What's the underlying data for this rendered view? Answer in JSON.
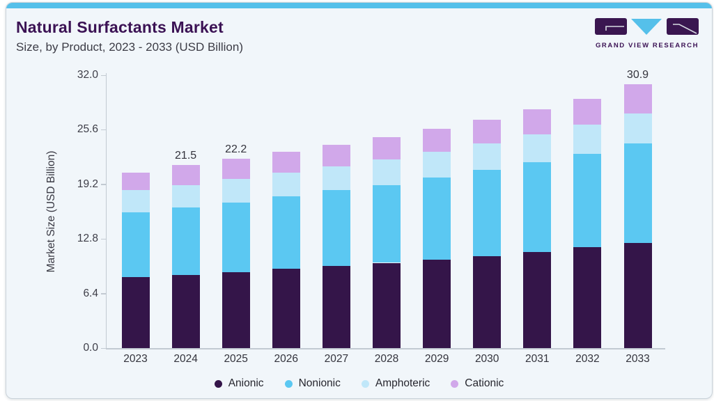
{
  "header": {
    "title": "Natural Surfactants Market",
    "subtitle": "Size, by Product, 2023 - 2033 (USD Billion)",
    "brand": "GRAND VIEW RESEARCH"
  },
  "colors": {
    "accent_bar": "#55c0ea",
    "card_background": "#f1f6fa",
    "title_purple": "#3b1254",
    "axis": "#c2cad2",
    "tick_text": "#3d3d47",
    "label_text": "#33333c"
  },
  "chart_data": {
    "type": "bar",
    "stacked": true,
    "title": "Natural Surfactants Market Size, by Product, 2023 - 2033 (USD Billion)",
    "xlabel": "",
    "ylabel": "Market Size (USD Billion)",
    "ylim": [
      0,
      32
    ],
    "yticks": [
      0.0,
      6.4,
      12.8,
      19.2,
      25.6,
      32.0
    ],
    "grid": false,
    "legend_position": "bottom",
    "categories": [
      "2023",
      "2024",
      "2025",
      "2026",
      "2027",
      "2028",
      "2029",
      "2030",
      "2031",
      "2032",
      "2033"
    ],
    "series": [
      {
        "name": "Anionic",
        "color": "#341549",
        "values": [
          8.3,
          8.6,
          8.9,
          9.3,
          9.6,
          10.0,
          10.4,
          10.8,
          11.3,
          11.8,
          12.3
        ]
      },
      {
        "name": "Nonionic",
        "color": "#5bc8f2",
        "values": [
          7.6,
          7.9,
          8.2,
          8.5,
          8.9,
          9.1,
          9.6,
          10.1,
          10.5,
          11.0,
          11.7
        ]
      },
      {
        "name": "Amphoteric",
        "color": "#c0e7f9",
        "values": [
          2.6,
          2.6,
          2.7,
          2.8,
          2.8,
          3.0,
          3.0,
          3.1,
          3.3,
          3.4,
          3.5
        ]
      },
      {
        "name": "Cationic",
        "color": "#d1a8ea",
        "values": [
          2.1,
          2.4,
          2.4,
          2.4,
          2.5,
          2.6,
          2.7,
          2.8,
          2.9,
          3.0,
          3.4
        ]
      }
    ],
    "totals": [
      20.6,
      21.5,
      22.2,
      23.0,
      23.8,
      24.7,
      25.7,
      26.8,
      28.0,
      29.2,
      30.9
    ],
    "value_labels": [
      {
        "category": "2024",
        "text": "21.5"
      },
      {
        "category": "2025",
        "text": "22.2"
      },
      {
        "category": "2033",
        "text": "30.9"
      }
    ]
  }
}
